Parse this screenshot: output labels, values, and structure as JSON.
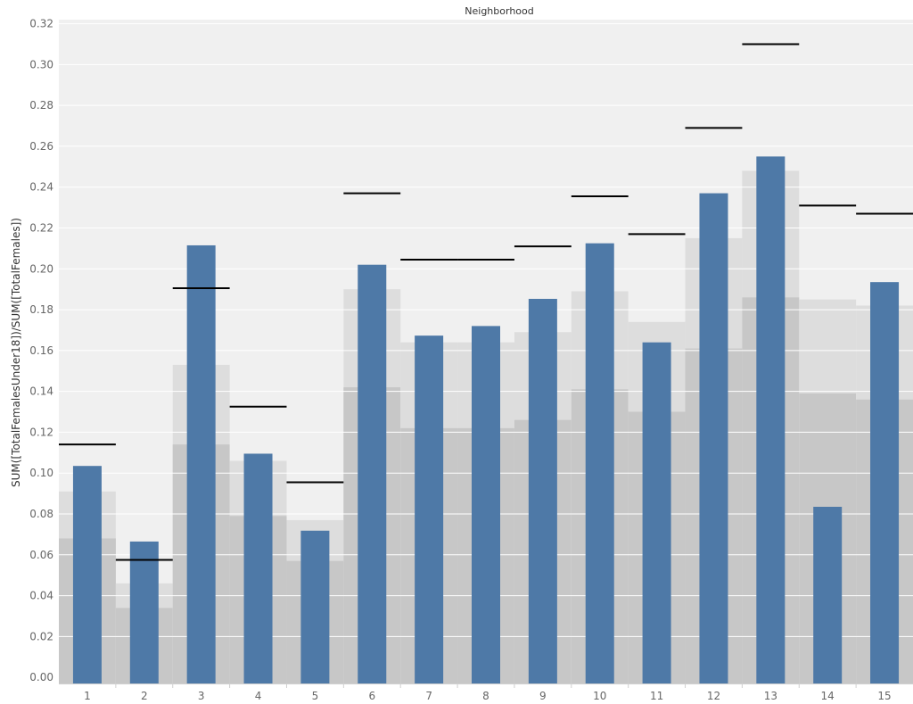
{
  "chart_data": {
    "type": "bar",
    "title": "Neighborhood",
    "xlabel": "",
    "ylabel": "SUM([TotalFemalesUnder18])/SUM([TotalFemales])",
    "categories": [
      "1",
      "2",
      "3",
      "4",
      "5",
      "6",
      "7",
      "8",
      "9",
      "10",
      "11",
      "12",
      "13",
      "14",
      "15"
    ],
    "series": [
      {
        "values": [
          0.1035,
          0.0665,
          0.2115,
          0.1095,
          0.0718,
          0.202,
          0.1673,
          0.172,
          0.1853,
          0.2125,
          0.164,
          0.237,
          0.255,
          0.0835,
          0.1935
        ]
      }
    ],
    "reference_lines": [
      0.114,
      0.0575,
      0.1905,
      0.1325,
      0.0955,
      0.237,
      0.2045,
      0.2045,
      0.211,
      0.2355,
      0.217,
      0.269,
      0.31,
      0.231,
      0.227
    ],
    "inner_band": [
      [
        0.068,
        0.091
      ],
      [
        0.034,
        0.046
      ],
      [
        0.114,
        0.153
      ],
      [
        0.079,
        0.106
      ],
      [
        0.057,
        0.077
      ],
      [
        0.142,
        0.19
      ],
      [
        0.122,
        0.164
      ],
      [
        0.122,
        0.164
      ],
      [
        0.126,
        0.169
      ],
      [
        0.141,
        0.189
      ],
      [
        0.13,
        0.174
      ],
      [
        0.161,
        0.215
      ],
      [
        0.186,
        0.248
      ],
      [
        0.139,
        0.185
      ],
      [
        0.136,
        0.182
      ]
    ],
    "ylim": [
      -0.003,
      0.322
    ],
    "yticks": [
      "0.00",
      "0.02",
      "0.04",
      "0.06",
      "0.08",
      "0.10",
      "0.12",
      "0.14",
      "0.16",
      "0.18",
      "0.20",
      "0.22",
      "0.24",
      "0.26",
      "0.28",
      "0.30",
      "0.32"
    ],
    "grid": true,
    "colors": {
      "bar": "#4e79a7",
      "plot_bg": "#f0f0f0",
      "outer_band": "#c7c7c7",
      "inner_band": "#dddddd",
      "ref_line": "#000000",
      "grid": "#ffffff"
    }
  }
}
